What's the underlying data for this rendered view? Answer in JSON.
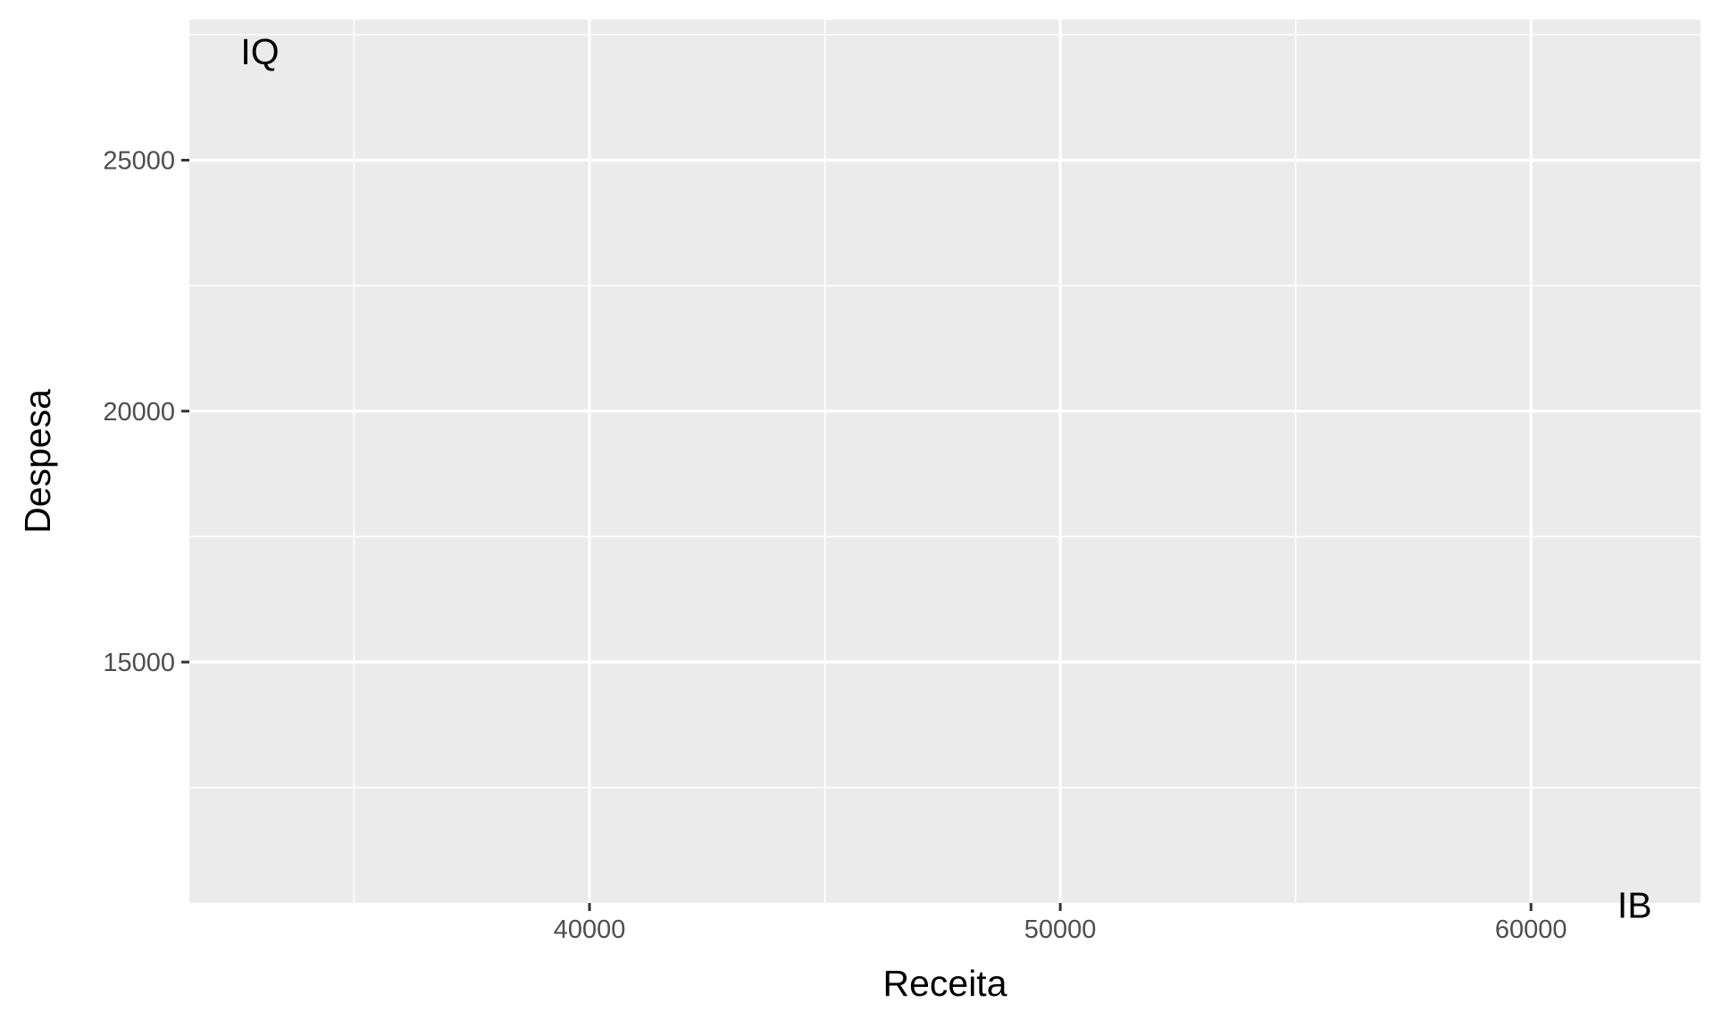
{
  "chart_data": {
    "type": "scatter",
    "title": "",
    "xlabel": "Receita",
    "ylabel": "Despesa",
    "xlim": [
      31500,
      63600
    ],
    "ylim": [
      10200,
      27800
    ],
    "x_ticks": [
      40000,
      50000,
      60000
    ],
    "x_tick_labels": [
      "40000",
      "50000",
      "60000"
    ],
    "x_minor_ticks": [
      35000,
      45000,
      55000
    ],
    "y_ticks": [
      15000,
      20000,
      25000
    ],
    "y_tick_labels": [
      "15000",
      "20000",
      "25000"
    ],
    "y_minor_ticks": [
      12500,
      17500,
      22500,
      27500
    ],
    "grid": true,
    "legend": "none",
    "colors": {
      "panel_background": "#ebebeb",
      "grid_major": "#ffffff",
      "grid_minor": "#ffffff",
      "tick_mark": "#333333",
      "tick_label": "#4d4d4d",
      "text": "#000000"
    },
    "points": [
      {
        "label": "IQ",
        "x": 33000,
        "y": 27100
      },
      {
        "label": "IB",
        "x": 62200,
        "y": 10100
      }
    ]
  }
}
